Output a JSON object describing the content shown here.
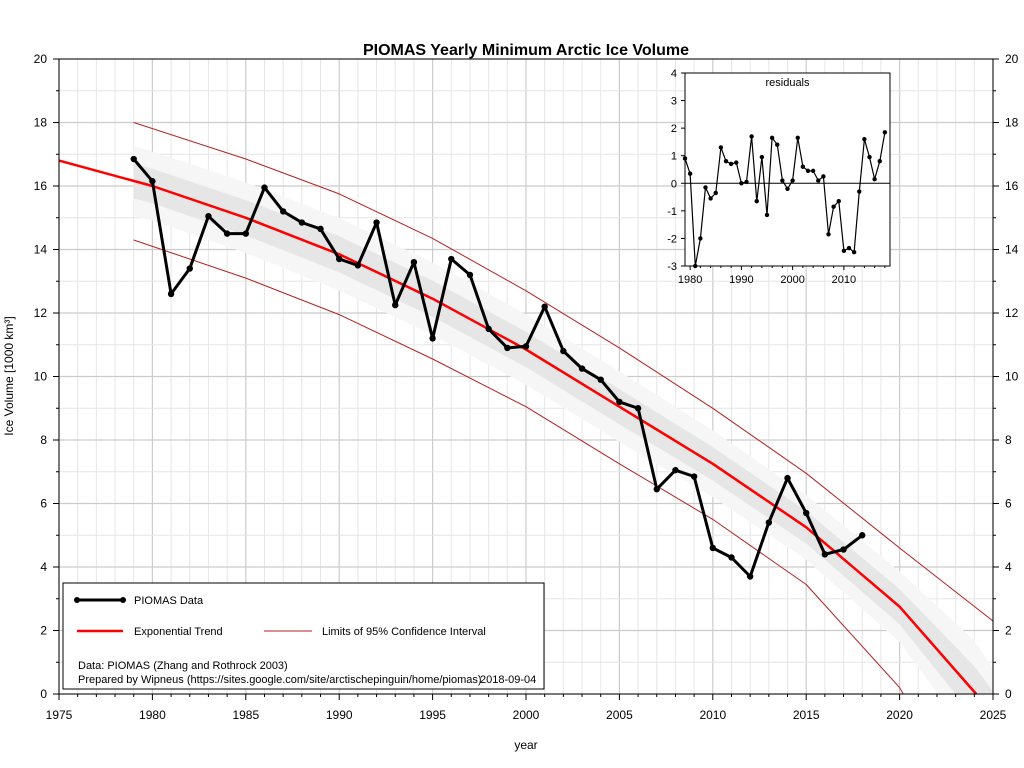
{
  "chart_data": {
    "type": "line",
    "title": "PIOMAS Yearly Minimum Arctic Ice Volume",
    "xlabel": "year",
    "ylabel": "Ice Volume [1000 km³]",
    "xlim": [
      1975,
      2025
    ],
    "ylim": [
      0,
      20
    ],
    "x_ticks": [
      1975,
      1980,
      1985,
      1990,
      1995,
      2000,
      2005,
      2010,
      2015,
      2020,
      2025
    ],
    "y_ticks": [
      0,
      2,
      4,
      6,
      8,
      10,
      12,
      14,
      16,
      18,
      20
    ],
    "grid": true,
    "legend_position": "bottom-left",
    "series": [
      {
        "name": "PIOMAS Data",
        "color": "#000000",
        "x": [
          1979,
          1980,
          1981,
          1982,
          1983,
          1984,
          1985,
          1986,
          1987,
          1988,
          1989,
          1990,
          1991,
          1992,
          1993,
          1994,
          1995,
          1996,
          1997,
          1998,
          1999,
          2000,
          2001,
          2002,
          2003,
          2004,
          2005,
          2006,
          2007,
          2008,
          2009,
          2010,
          2011,
          2012,
          2013,
          2014,
          2015,
          2016,
          2017,
          2018
        ],
        "values": [
          16.85,
          16.15,
          12.6,
          13.4,
          15.05,
          14.5,
          14.5,
          15.95,
          15.2,
          14.85,
          14.65,
          13.7,
          13.5,
          14.85,
          12.25,
          13.6,
          11.2,
          13.7,
          13.2,
          11.5,
          10.9,
          10.95,
          12.2,
          10.8,
          10.25,
          9.9,
          9.2,
          9.0,
          6.45,
          7.05,
          6.85,
          4.6,
          4.3,
          3.7,
          5.4,
          6.8,
          5.7,
          4.4,
          4.55,
          5.0
        ]
      },
      {
        "name": "Exponential Trend",
        "color": "#ff0000",
        "x": [
          1975,
          1980,
          1985,
          1990,
          1995,
          2000,
          2005,
          2010,
          2015,
          2020,
          2024.1
        ],
        "values": [
          16.8,
          16.0,
          15.0,
          13.85,
          12.45,
          10.85,
          9.05,
          7.25,
          5.25,
          2.75,
          0.0
        ]
      },
      {
        "name": "Limits of 95% Confidence Interval (upper)",
        "color": "#b22222",
        "x": [
          1979,
          1985,
          1990,
          1995,
          2000,
          2005,
          2010,
          2015,
          2020,
          2025
        ],
        "values": [
          18.0,
          16.85,
          15.75,
          14.35,
          12.7,
          10.9,
          9.0,
          6.95,
          4.6,
          2.3
        ]
      },
      {
        "name": "Limits of 95% Confidence Interval (lower)",
        "color": "#b22222",
        "x": [
          1979,
          1985,
          1990,
          1995,
          2000,
          2005,
          2010,
          2015,
          2020,
          2020.2
        ],
        "values": [
          14.3,
          13.1,
          11.95,
          10.55,
          9.05,
          7.25,
          5.5,
          3.45,
          0.2,
          0.0
        ]
      }
    ],
    "inset": {
      "title": "residuals",
      "type": "line",
      "xlim": [
        1979,
        2019
      ],
      "ylim": [
        -3,
        4
      ],
      "x_ticks": [
        1980,
        1990,
        2000,
        2010
      ],
      "y_ticks": [
        -3,
        -2,
        -1,
        0,
        1,
        2,
        3,
        4
      ],
      "x": [
        1979,
        1980,
        1981,
        1982,
        1983,
        1984,
        1985,
        1986,
        1987,
        1988,
        1989,
        1990,
        1991,
        1992,
        1993,
        1994,
        1995,
        1996,
        1997,
        1998,
        1999,
        2000,
        2001,
        2002,
        2003,
        2004,
        2005,
        2006,
        2007,
        2008,
        2009,
        2010,
        2011,
        2012,
        2013,
        2014,
        2015,
        2016,
        2017,
        2018
      ],
      "values": [
        0.9,
        0.35,
        -3.0,
        -2.0,
        -0.15,
        -0.55,
        -0.35,
        1.3,
        0.8,
        0.7,
        0.75,
        0.0,
        0.05,
        1.7,
        -0.65,
        0.95,
        -1.15,
        1.65,
        1.4,
        0.1,
        -0.2,
        0.1,
        1.65,
        0.6,
        0.45,
        0.45,
        0.1,
        0.25,
        -1.85,
        -0.85,
        -0.65,
        -2.45,
        -2.35,
        -2.5,
        -0.3,
        1.6,
        0.95,
        0.15,
        0.8,
        1.85
      ]
    },
    "legend": {
      "data_label": "PIOMAS Data",
      "trend_label": "Exponential Trend",
      "ci_label": "Limits of 95% Confidence Interval"
    },
    "credits": {
      "line1": "Data: PIOMAS (Zhang and Rothrock 2003)",
      "line2": "Prepared by Wipneus (https://sites.google.com/site/arctischepinguin/home/piomas)",
      "date": "2018-09-04"
    }
  }
}
